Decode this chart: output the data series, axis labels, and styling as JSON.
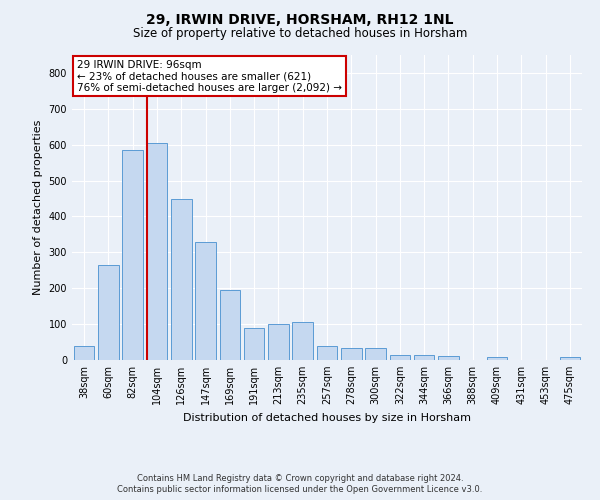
{
  "title1": "29, IRWIN DRIVE, HORSHAM, RH12 1NL",
  "title2": "Size of property relative to detached houses in Horsham",
  "xlabel": "Distribution of detached houses by size in Horsham",
  "ylabel": "Number of detached properties",
  "categories": [
    "38sqm",
    "60sqm",
    "82sqm",
    "104sqm",
    "126sqm",
    "147sqm",
    "169sqm",
    "191sqm",
    "213sqm",
    "235sqm",
    "257sqm",
    "278sqm",
    "300sqm",
    "322sqm",
    "344sqm",
    "366sqm",
    "388sqm",
    "409sqm",
    "431sqm",
    "453sqm",
    "475sqm"
  ],
  "values": [
    38,
    265,
    585,
    605,
    450,
    330,
    195,
    90,
    100,
    105,
    38,
    33,
    33,
    15,
    15,
    10,
    0,
    8,
    0,
    0,
    7
  ],
  "bar_color": "#c5d8f0",
  "bar_edge_color": "#5b9bd5",
  "vline_x_index": 3,
  "vline_color": "#cc0000",
  "annotation_text": "29 IRWIN DRIVE: 96sqm\n← 23% of detached houses are smaller (621)\n76% of semi-detached houses are larger (2,092) →",
  "annotation_box_color": "#cc0000",
  "ylim": [
    0,
    850
  ],
  "yticks": [
    0,
    100,
    200,
    300,
    400,
    500,
    600,
    700,
    800
  ],
  "footer1": "Contains HM Land Registry data © Crown copyright and database right 2024.",
  "footer2": "Contains public sector information licensed under the Open Government Licence v3.0.",
  "bg_color": "#eaf0f8",
  "plot_bg_color": "#eaf0f8",
  "grid_color": "#ffffff",
  "title1_fontsize": 10,
  "title2_fontsize": 8.5,
  "ylabel_fontsize": 8,
  "xlabel_fontsize": 8,
  "tick_fontsize": 7,
  "footer_fontsize": 6,
  "ann_fontsize": 7.5
}
